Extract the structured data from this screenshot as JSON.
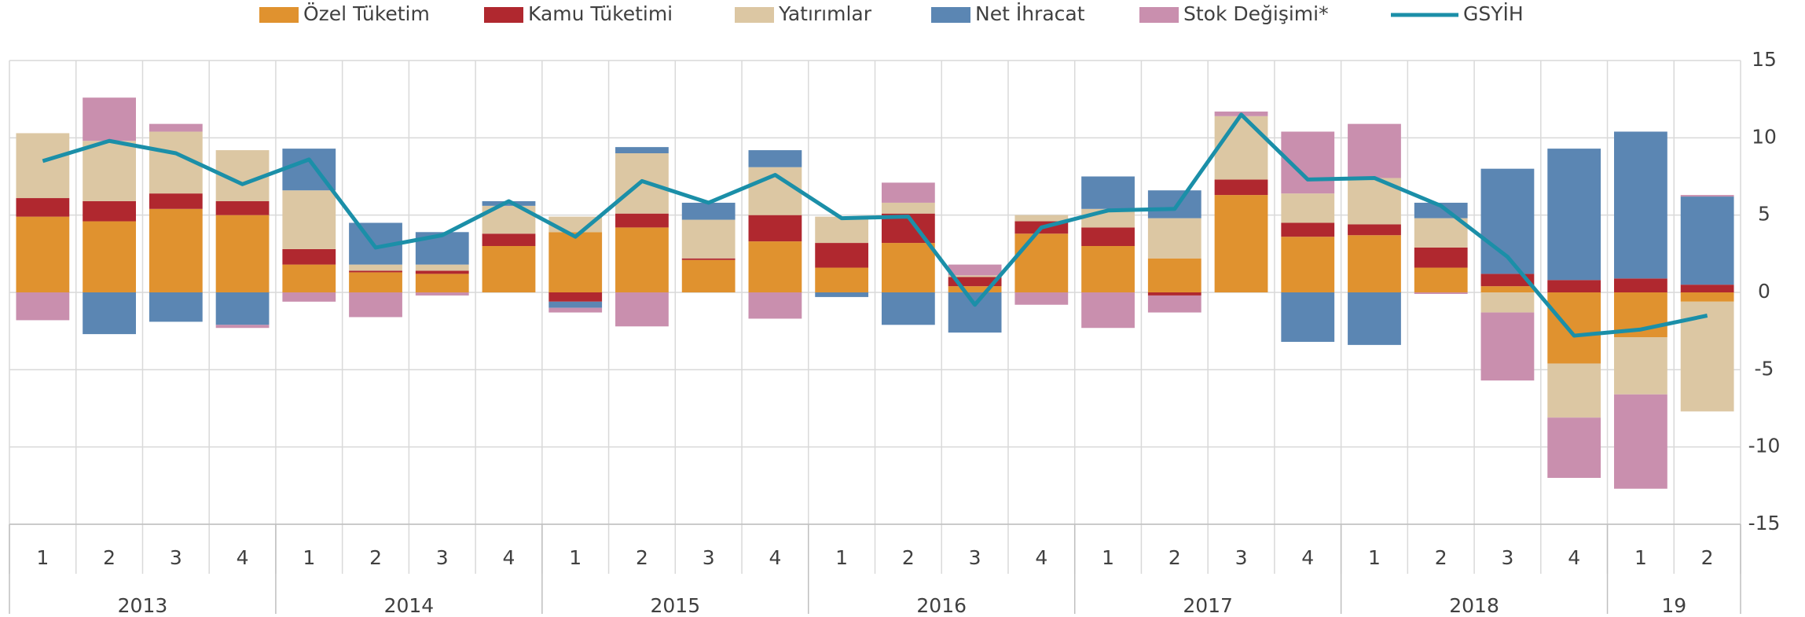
{
  "chart_data": {
    "type": "bar",
    "stacked": true,
    "grid": true,
    "categories": [
      "1",
      "2",
      "3",
      "4",
      "1",
      "2",
      "3",
      "4",
      "1",
      "2",
      "3",
      "4",
      "1",
      "2",
      "3",
      "4",
      "1",
      "2",
      "3",
      "4",
      "1",
      "2",
      "3",
      "4",
      "1",
      "2"
    ],
    "years": [
      "2013",
      "2014",
      "2015",
      "2016",
      "2017",
      "2018",
      "19"
    ],
    "ylim": [
      -15,
      15
    ],
    "yticks": [
      15,
      10,
      5,
      0,
      -5,
      -10,
      -15
    ],
    "series": [
      {
        "name": "Özel Tüketim",
        "color": "#e0922f",
        "type": "bar",
        "values": [
          4.9,
          4.6,
          5.4,
          5.0,
          1.8,
          1.3,
          1.2,
          3.0,
          3.9,
          4.2,
          2.1,
          3.3,
          1.6,
          3.2,
          0.4,
          3.8,
          3.0,
          2.2,
          6.3,
          3.6,
          3.7,
          1.6,
          0.4,
          -4.6,
          -2.9,
          -0.6
        ]
      },
      {
        "name": "Kamu Tüketimi",
        "color": "#b0282f",
        "type": "bar",
        "values": [
          1.2,
          1.3,
          1.0,
          0.9,
          1.0,
          0.1,
          0.2,
          0.8,
          -0.6,
          0.9,
          0.1,
          1.7,
          1.6,
          1.9,
          0.6,
          0.8,
          1.2,
          -0.2,
          1.0,
          0.9,
          0.7,
          1.3,
          0.8,
          0.8,
          0.9,
          0.5
        ]
      },
      {
        "name": "Yatırımlar",
        "color": "#dcc7a3",
        "type": "bar",
        "values": [
          4.2,
          3.9,
          4.0,
          3.3,
          3.8,
          0.4,
          0.4,
          1.8,
          1.0,
          3.9,
          2.5,
          3.1,
          1.7,
          0.7,
          0.1,
          0.4,
          1.2,
          2.6,
          4.1,
          1.9,
          3.0,
          1.9,
          -1.3,
          -3.5,
          -3.7,
          -7.1
        ]
      },
      {
        "name": "Net İhracat",
        "color": "#5b86b3",
        "type": "bar",
        "values": [
          0,
          -2.7,
          -1.9,
          -2.1,
          2.7,
          2.7,
          2.1,
          0.3,
          -0.4,
          0.4,
          1.1,
          1.1,
          -0.3,
          -2.1,
          -2.6,
          0,
          2.1,
          1.8,
          0,
          -3.2,
          -3.4,
          1.0,
          6.8,
          8.5,
          9.5,
          5.7
        ]
      },
      {
        "name": "Stok Değişimi*",
        "color": "#c98fae",
        "type": "bar",
        "values": [
          -1.8,
          2.8,
          0.5,
          -0.2,
          -0.6,
          -1.6,
          -0.2,
          0,
          -0.3,
          -2.2,
          0,
          -1.7,
          0,
          1.3,
          0.7,
          -0.8,
          -2.3,
          -1.1,
          0.3,
          4.0,
          3.5,
          -0.1,
          -4.4,
          -3.9,
          -6.1,
          0.1
        ]
      },
      {
        "name": "GSYİH",
        "color": "#1b8fa8",
        "type": "line",
        "values": [
          8.5,
          9.8,
          9.0,
          7.0,
          8.6,
          2.9,
          3.7,
          5.9,
          3.6,
          7.2,
          5.8,
          7.6,
          4.8,
          4.9,
          -0.8,
          4.2,
          5.3,
          5.4,
          11.5,
          7.3,
          7.4,
          5.6,
          2.3,
          -2.8,
          -2.4,
          -1.5
        ]
      }
    ]
  }
}
